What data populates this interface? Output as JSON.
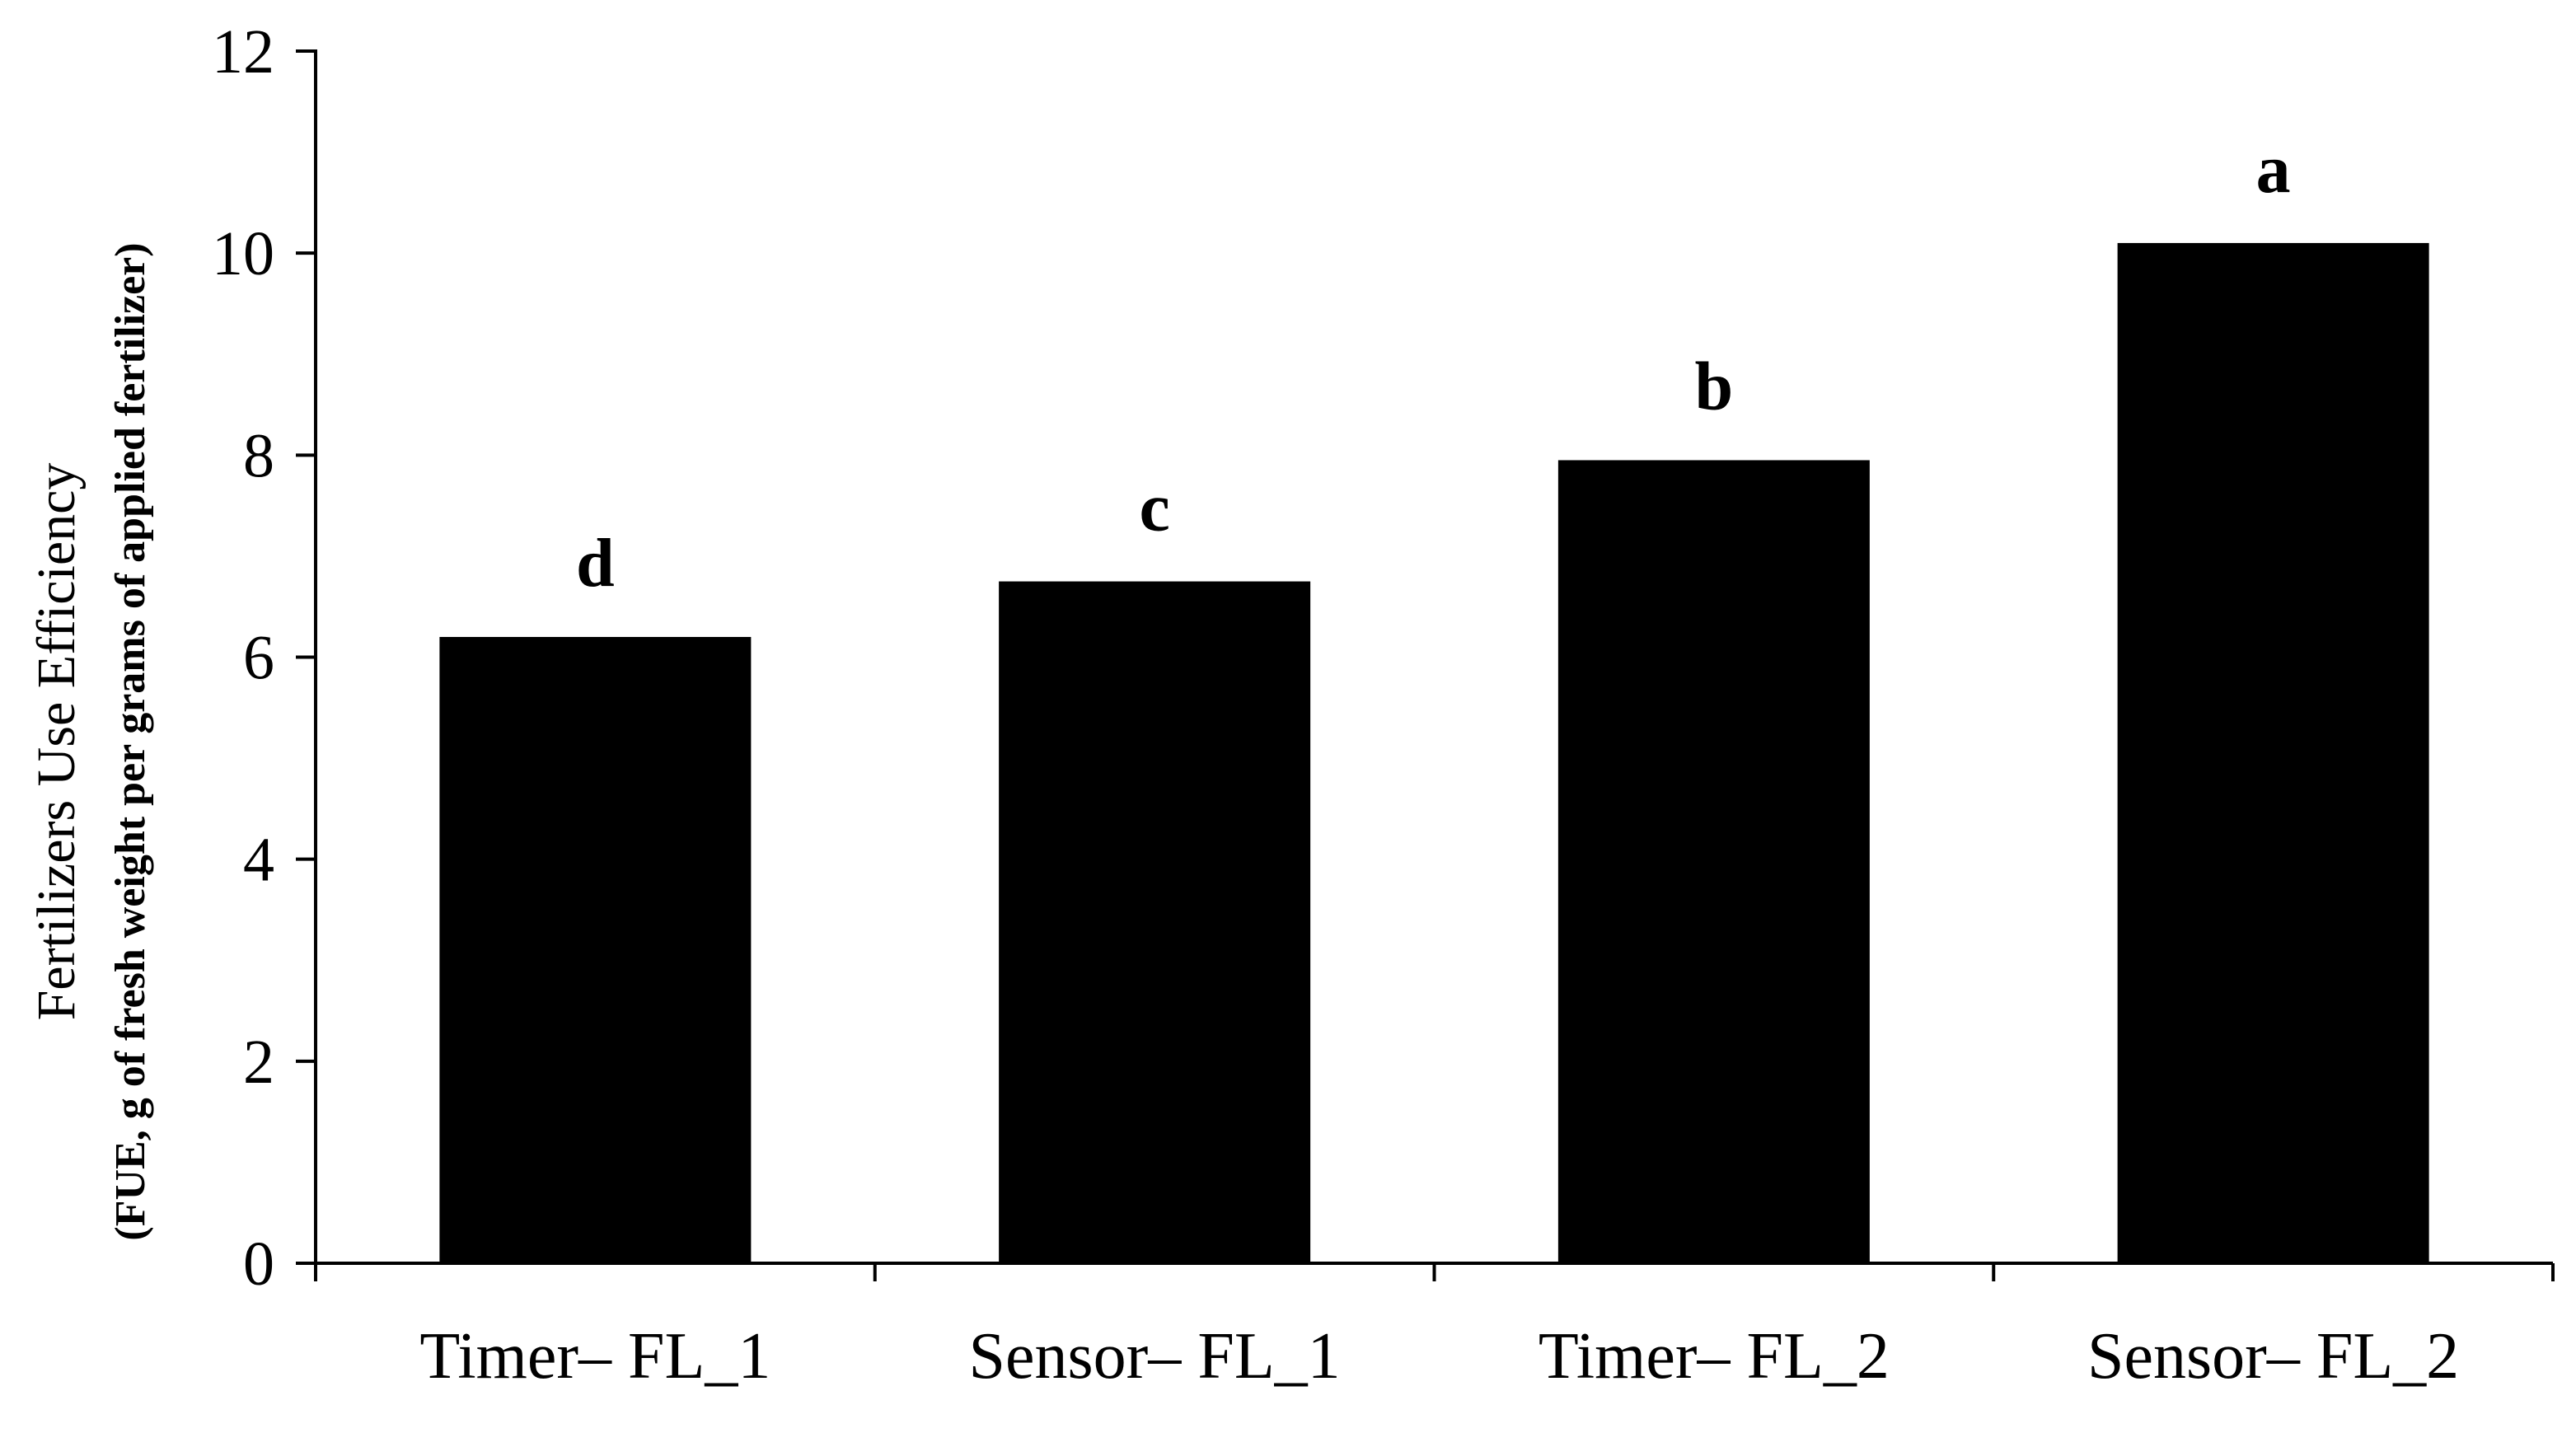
{
  "chart_data": {
    "type": "bar",
    "categories": [
      "Timer– FL_1",
      "Sensor– FL_1",
      "Timer– FL_2",
      "Sensor– FL_2"
    ],
    "values": [
      6.2,
      6.75,
      7.95,
      10.1
    ],
    "bar_labels": [
      "d",
      "c",
      "b",
      "a"
    ],
    "ylabel": "Fertilizers Use Efficiency",
    "ylabel_sub": "(FUE, g of fresh weight per grams of applied fertilizer)",
    "ylim": [
      0,
      12
    ],
    "yticks": [
      0,
      2,
      4,
      6,
      8,
      10,
      12
    ],
    "grid": false,
    "legend": "none",
    "bar_color": "#000000"
  }
}
